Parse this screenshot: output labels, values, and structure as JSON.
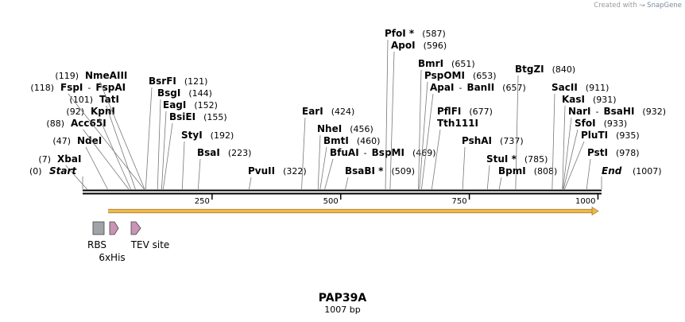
{
  "credit": {
    "prefix": "Created with",
    "icon": "snapgene-logo-icon",
    "brand": "SnapGene"
  },
  "plasmid": {
    "name": "PAP39A",
    "length_label": "1007 bp",
    "length": 1007
  },
  "axis": {
    "ticks": [
      250,
      500,
      750,
      1000
    ]
  },
  "sites": [
    {
      "name": "XbaI",
      "pos": 7
    },
    {
      "name": "NdeI",
      "pos": 47
    },
    {
      "name": "Acc65I",
      "pos": 88
    },
    {
      "name": "KpnI",
      "pos": 92
    },
    {
      "name": "TatI",
      "pos": 101
    },
    {
      "name": "FspI",
      "pos": 118,
      "pair": "FspAI"
    },
    {
      "name": "NmeAIII",
      "pos": 119
    },
    {
      "name": "BsrFI",
      "pos": 121
    },
    {
      "name": "BsgI",
      "pos": 144
    },
    {
      "name": "EagI",
      "pos": 152
    },
    {
      "name": "BsiEI",
      "pos": 155
    },
    {
      "name": "StyI",
      "pos": 192
    },
    {
      "name": "BsaI",
      "pos": 223
    },
    {
      "name": "PvuII",
      "pos": 322
    },
    {
      "name": "EarI",
      "pos": 424
    },
    {
      "name": "NheI",
      "pos": 456
    },
    {
      "name": "BmtI",
      "pos": 460
    },
    {
      "name": "BfuAI",
      "pos": 469,
      "pair": "BspMI"
    },
    {
      "name": "BsaBI *",
      "pos": 509
    },
    {
      "name": "PfoI *",
      "pos": 587
    },
    {
      "name": "ApoI",
      "pos": 596
    },
    {
      "name": "BmrI",
      "pos": 651
    },
    {
      "name": "PspOMI",
      "pos": 653
    },
    {
      "name": "ApaI",
      "pos": 657,
      "pair": "BanII"
    },
    {
      "name": "PflFI",
      "pos": 677,
      "pair2": "Tth111I"
    },
    {
      "name": "PshAI",
      "pos": 737
    },
    {
      "name": "StuI *",
      "pos": 785
    },
    {
      "name": "BpmI",
      "pos": 808
    },
    {
      "name": "BtgZI",
      "pos": 840
    },
    {
      "name": "SacII",
      "pos": 911
    },
    {
      "name": "KasI",
      "pos": 931
    },
    {
      "name": "NarI",
      "pos": 932,
      "pair": "BsaHI"
    },
    {
      "name": "SfoI",
      "pos": 933
    },
    {
      "name": "PluTI",
      "pos": 935
    },
    {
      "name": "PstI",
      "pos": 978
    }
  ],
  "ends": {
    "start_label": "Start",
    "start_pos": "(0)",
    "end_label": "End",
    "end_pos": "(1007)"
  },
  "features": [
    {
      "name": "RBS",
      "kind": "box",
      "color": "#a0a4a8"
    },
    {
      "name": "6xHis",
      "kind": "arrow",
      "color": "#c994b6"
    },
    {
      "name": "TEV site",
      "kind": "arrow",
      "color": "#c994b6"
    }
  ],
  "orf": {
    "color": "#f2b84b",
    "direction": "forward"
  }
}
